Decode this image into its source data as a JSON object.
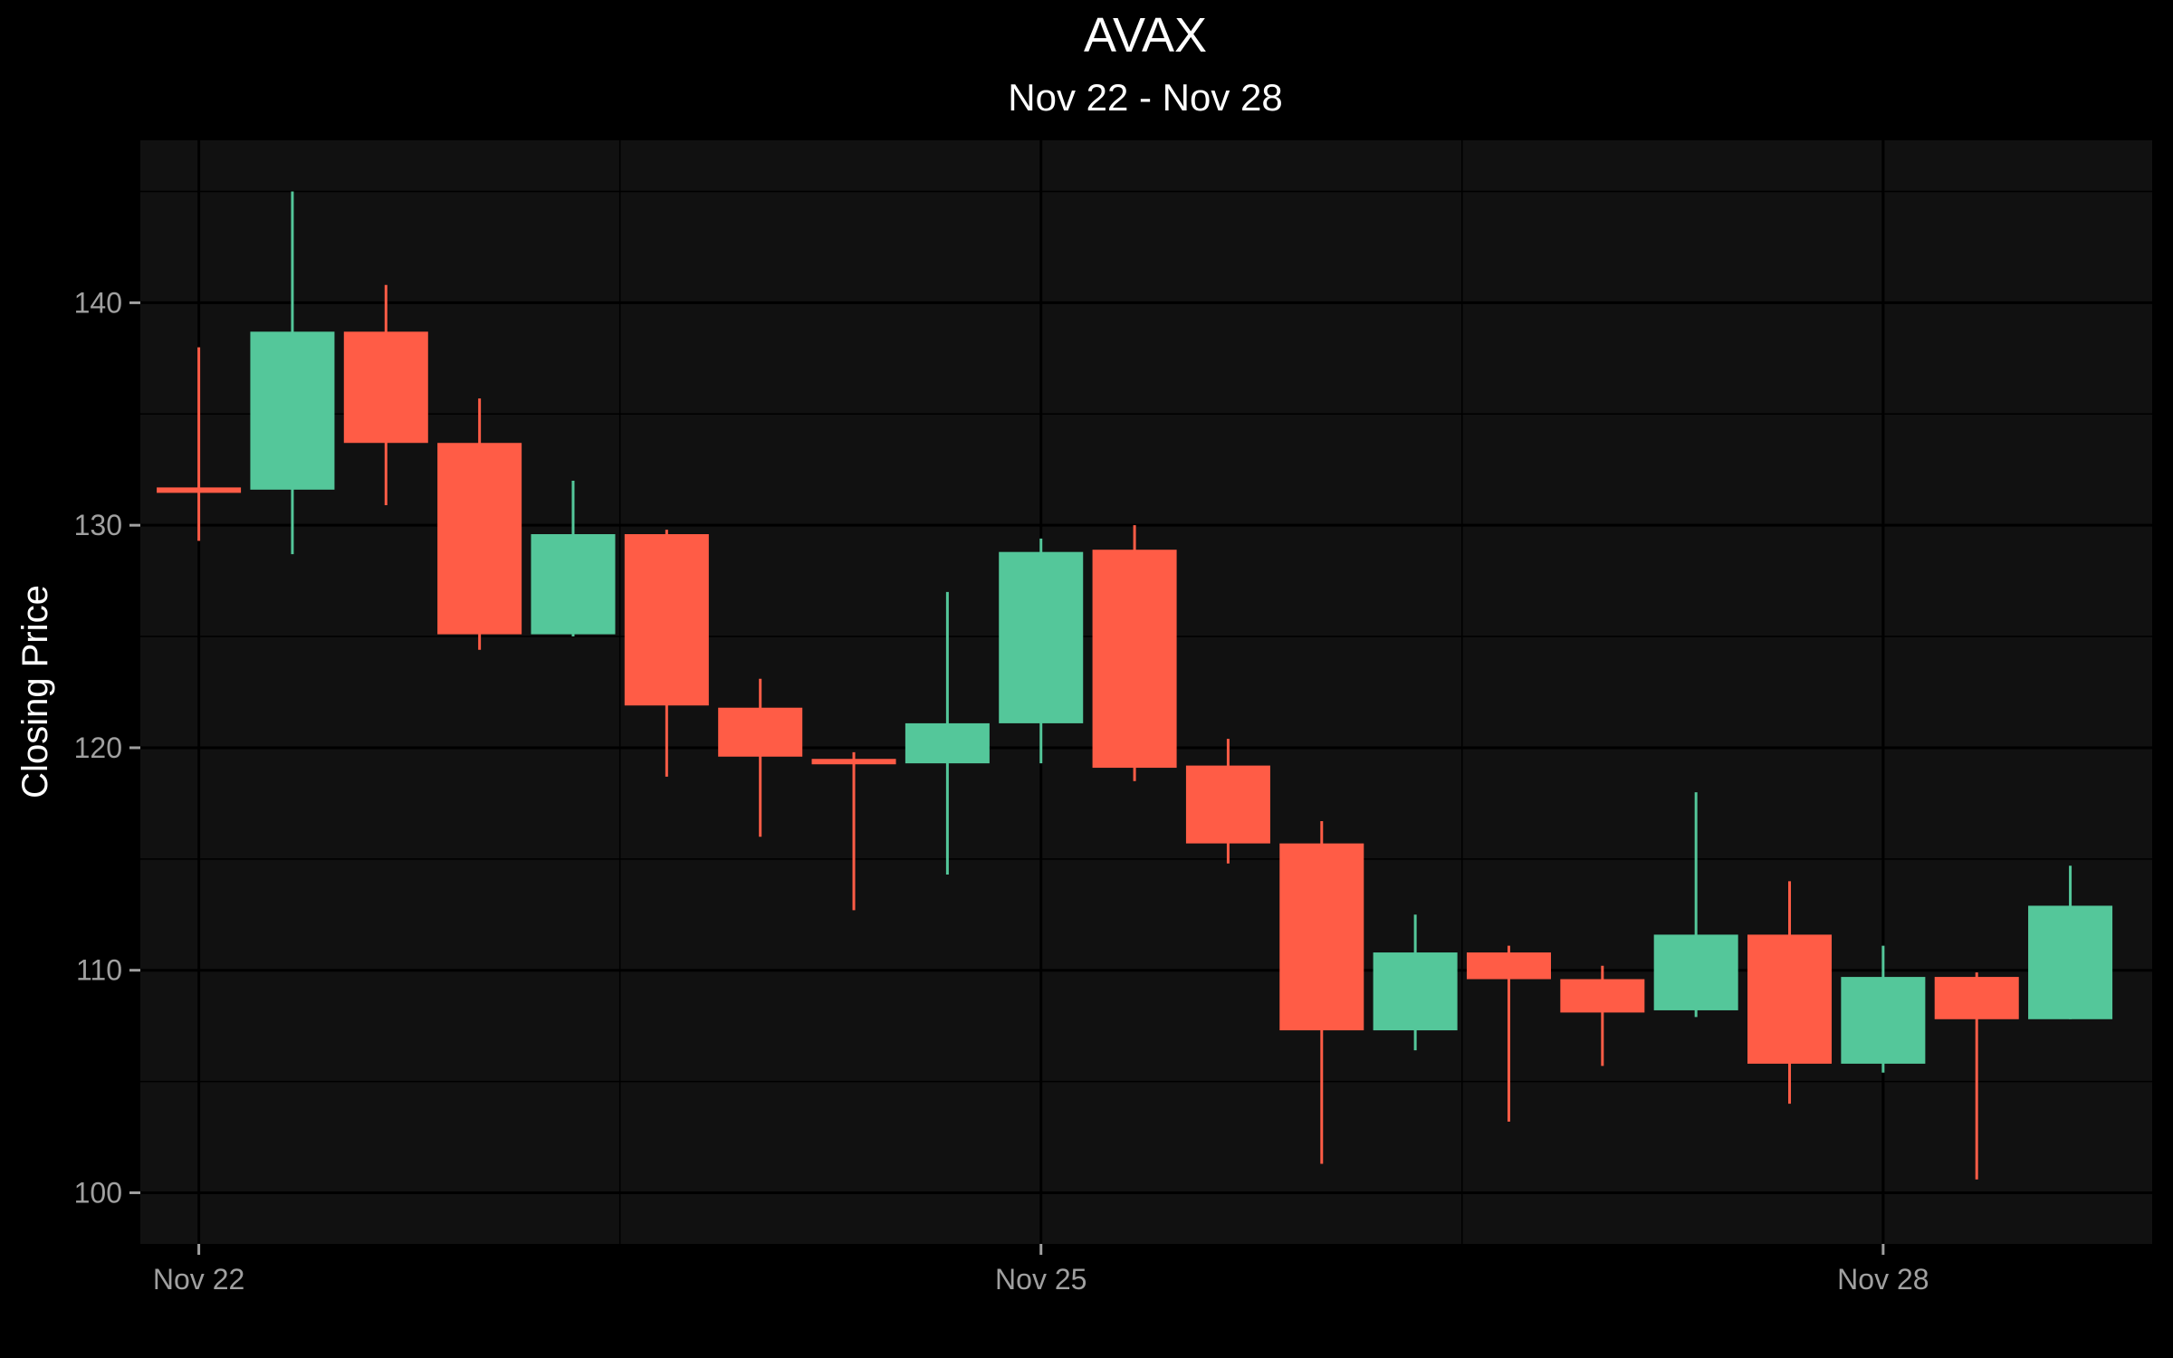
{
  "chart_data": {
    "type": "candlestick",
    "title": "AVAX",
    "subtitle": "Nov 22 - Nov 28",
    "xlabel": "",
    "ylabel": "Closing Price",
    "ylim": [
      97.7,
      147.3
    ],
    "xlim": [
      "2024-11-21 19:00",
      "2024-11-28 23:00"
    ],
    "grid": true,
    "legend": "none",
    "x_ticks": [
      {
        "x": "2024-11-22 00:00",
        "label": "Nov 22"
      },
      {
        "x": "2024-11-25 00:00",
        "label": "Nov 25"
      },
      {
        "x": "2024-11-28 00:00",
        "label": "Nov 28"
      }
    ],
    "y_ticks": [
      100,
      110,
      120,
      130,
      140
    ],
    "colors": {
      "up": "#54c79a",
      "down": "#ff5c46",
      "panel": "#111111",
      "grid_major": "#000000",
      "grid_minor": "#000000",
      "background": "#000000"
    },
    "candles": [
      {
        "x": "2024-11-22 00:00",
        "open": 131.7,
        "high": 138.0,
        "low": 129.3,
        "close": 131.6
      },
      {
        "x": "2024-11-22 08:00",
        "open": 131.6,
        "high": 145.0,
        "low": 128.7,
        "close": 138.7
      },
      {
        "x": "2024-11-22 16:00",
        "open": 138.7,
        "high": 140.8,
        "low": 130.9,
        "close": 133.7
      },
      {
        "x": "2024-11-23 00:00",
        "open": 133.7,
        "high": 135.7,
        "low": 124.4,
        "close": 125.1
      },
      {
        "x": "2024-11-23 08:00",
        "open": 125.1,
        "high": 132.0,
        "low": 125.0,
        "close": 129.6
      },
      {
        "x": "2024-11-23 16:00",
        "open": 129.6,
        "high": 129.8,
        "low": 118.7,
        "close": 121.9
      },
      {
        "x": "2024-11-24 00:00",
        "open": 121.8,
        "high": 123.1,
        "low": 116.0,
        "close": 119.6
      },
      {
        "x": "2024-11-24 08:00",
        "open": 119.5,
        "high": 119.8,
        "low": 112.7,
        "close": 119.3
      },
      {
        "x": "2024-11-24 16:00",
        "open": 119.3,
        "high": 127.0,
        "low": 114.3,
        "close": 121.1
      },
      {
        "x": "2024-11-25 00:00",
        "open": 121.1,
        "high": 129.4,
        "low": 119.3,
        "close": 128.8
      },
      {
        "x": "2024-11-25 08:00",
        "open": 128.9,
        "high": 130.0,
        "low": 118.5,
        "close": 119.1
      },
      {
        "x": "2024-11-25 16:00",
        "open": 119.2,
        "high": 120.4,
        "low": 114.8,
        "close": 115.7
      },
      {
        "x": "2024-11-26 00:00",
        "open": 115.7,
        "high": 116.7,
        "low": 101.3,
        "close": 107.3
      },
      {
        "x": "2024-11-26 08:00",
        "open": 107.3,
        "high": 112.5,
        "low": 106.4,
        "close": 110.8
      },
      {
        "x": "2024-11-26 16:00",
        "open": 110.8,
        "high": 111.1,
        "low": 103.2,
        "close": 109.6
      },
      {
        "x": "2024-11-27 00:00",
        "open": 109.6,
        "high": 110.2,
        "low": 105.7,
        "close": 108.1
      },
      {
        "x": "2024-11-27 08:00",
        "open": 108.2,
        "high": 118.0,
        "low": 107.9,
        "close": 111.6
      },
      {
        "x": "2024-11-27 16:00",
        "open": 111.6,
        "high": 114.0,
        "low": 104.0,
        "close": 105.8
      },
      {
        "x": "2024-11-28 00:00",
        "open": 105.8,
        "high": 111.1,
        "low": 105.4,
        "close": 109.7
      },
      {
        "x": "2024-11-28 08:00",
        "open": 109.7,
        "high": 109.9,
        "low": 100.6,
        "close": 107.8
      },
      {
        "x": "2024-11-28 16:00",
        "open": 107.8,
        "high": 114.7,
        "low": 107.8,
        "close": 112.9
      }
    ]
  }
}
